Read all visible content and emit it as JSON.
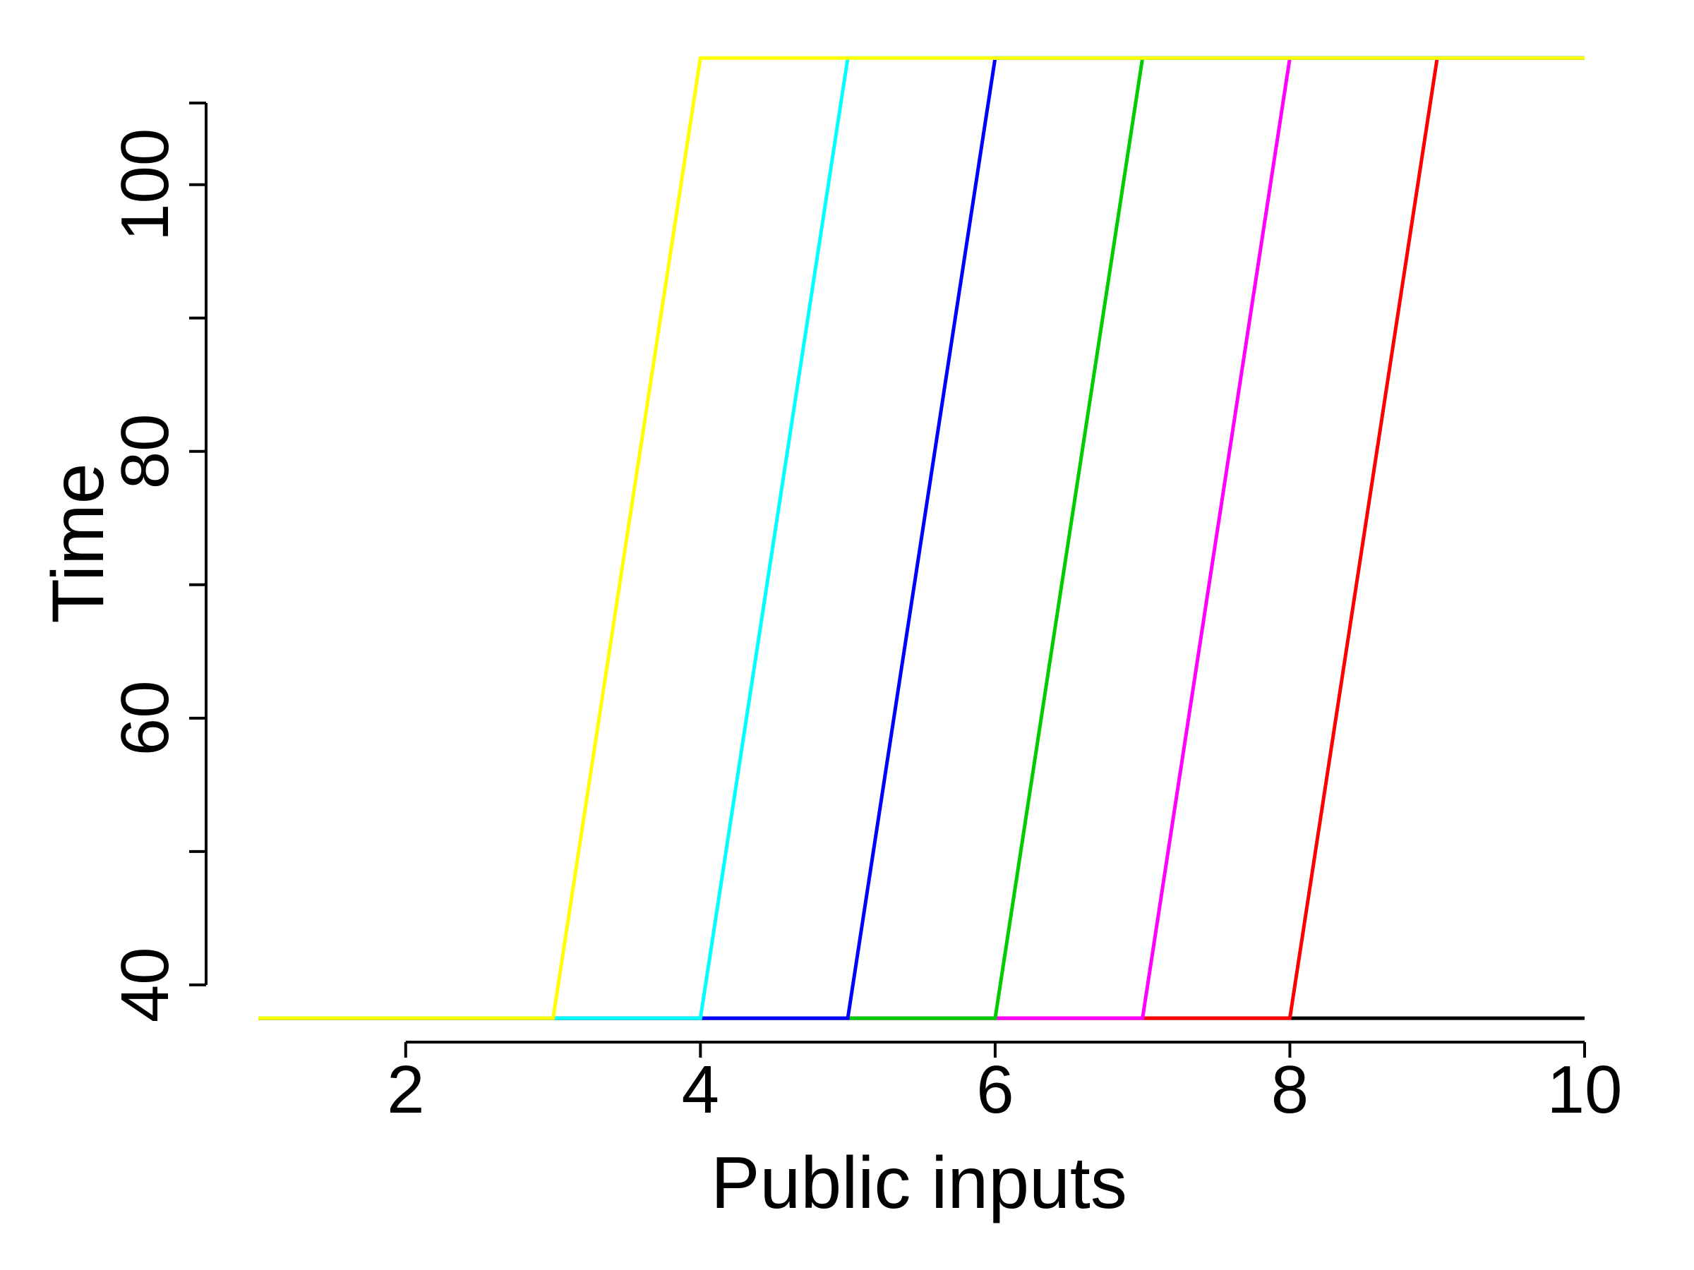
{
  "chart_data": {
    "type": "line",
    "title": "",
    "xlabel": "Public inputs",
    "ylabel": "Time",
    "xlim": [
      1,
      10
    ],
    "ylim": [
      36.5,
      107.5
    ],
    "x_ticks": [
      2,
      4,
      6,
      8,
      10
    ],
    "y_ticks": [
      40,
      50,
      60,
      70,
      80,
      90,
      100
    ],
    "y_tick_labels": [
      {
        "value": 40,
        "label": "40"
      },
      {
        "value": 60,
        "label": "60"
      },
      {
        "value": 80,
        "label": "80"
      },
      {
        "value": 100,
        "label": "100"
      }
    ],
    "grid": false,
    "x": [
      1,
      2,
      3,
      4,
      5,
      6,
      7,
      8,
      9,
      10
    ],
    "series": [
      {
        "color": "#000000",
        "values": [
          37.5,
          37.5,
          37.5,
          37.5,
          37.5,
          37.5,
          37.5,
          37.5,
          37.5,
          37.5
        ]
      },
      {
        "color": "#ff0000",
        "values": [
          37.5,
          37.5,
          37.5,
          37.5,
          37.5,
          37.5,
          37.5,
          37.5,
          109.5,
          109.5
        ]
      },
      {
        "color": "#ff00ff",
        "values": [
          37.5,
          37.5,
          37.5,
          37.5,
          37.5,
          37.5,
          37.5,
          109.5,
          109.5,
          109.5
        ]
      },
      {
        "color": "#00cc00",
        "values": [
          37.5,
          37.5,
          37.5,
          37.5,
          37.5,
          37.5,
          109.5,
          109.5,
          109.5,
          109.5
        ]
      },
      {
        "color": "#0000ff",
        "values": [
          37.5,
          37.5,
          37.5,
          37.5,
          37.5,
          109.5,
          109.5,
          109.5,
          109.5,
          109.5
        ]
      },
      {
        "color": "#00ffff",
        "values": [
          37.5,
          37.5,
          37.5,
          37.5,
          109.5,
          109.5,
          109.5,
          109.5,
          109.5,
          109.5
        ]
      },
      {
        "color": "#ffff00",
        "values": [
          37.5,
          37.5,
          37.5,
          109.5,
          109.5,
          109.5,
          109.5,
          109.5,
          109.5,
          109.5
        ]
      }
    ]
  }
}
